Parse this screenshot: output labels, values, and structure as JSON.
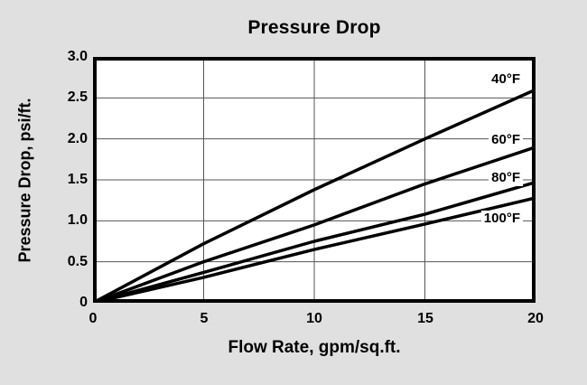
{
  "chart_data": {
    "type": "line",
    "title": "Pressure Drop",
    "xlabel": "Flow Rate, gpm/sq.ft.",
    "ylabel": "Pressure Drop, psi/ft.",
    "x": [
      0,
      5,
      10,
      15,
      20
    ],
    "series": [
      {
        "name": "40°F",
        "values": [
          0,
          0.72,
          1.38,
          2.0,
          2.6
        ]
      },
      {
        "name": "60°F",
        "values": [
          0,
          0.5,
          0.95,
          1.45,
          1.9
        ]
      },
      {
        "name": "80°F",
        "values": [
          0,
          0.37,
          0.75,
          1.08,
          1.47
        ]
      },
      {
        "name": "100°F",
        "values": [
          0,
          0.31,
          0.65,
          0.96,
          1.28
        ]
      }
    ],
    "xlim": [
      0,
      20
    ],
    "ylim": [
      0,
      3.0
    ],
    "xticks": [
      "0",
      "5",
      "10",
      "15",
      "20"
    ],
    "yticks": [
      "3.0",
      "2.5",
      "2.0",
      "1.5",
      "1.0",
      "0.5",
      "0"
    ],
    "grid": true,
    "legend_position": "inline-right",
    "line_color": "#000000",
    "grid_color": "#555555",
    "background": "#e0e0e0",
    "plot_background": "#ffffff"
  }
}
